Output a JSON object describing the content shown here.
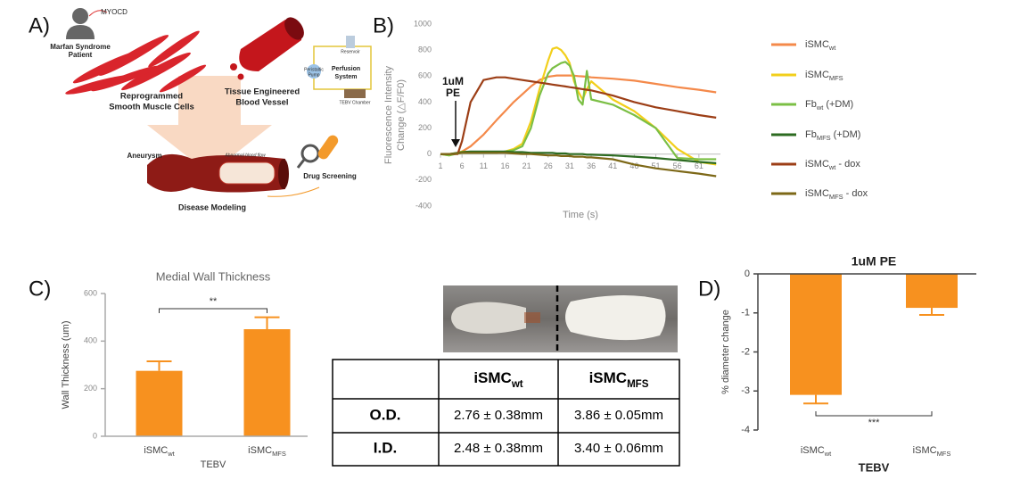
{
  "panels": [
    "A)",
    "B)",
    "C)",
    "D)"
  ],
  "diagram": {
    "gene": "MYOCD",
    "patient": [
      "Marfan Syndrome",
      "Patient"
    ],
    "cells": [
      "Reprogrammed",
      "Smooth Muscle Cells"
    ],
    "vessel": [
      "Tissue Engineered",
      "Blood Vessel"
    ],
    "perfusion": [
      "Perfusion",
      "System"
    ],
    "reservoir": "Reservoir",
    "pump": [
      "Peristaltic",
      "Pump"
    ],
    "chamber": "TEBV Chamber",
    "aneurysm": "Aneurysm",
    "flow": "Abnormal blood flow",
    "screening": "Drug Screening",
    "modeling": "Disease Modeling"
  },
  "table": {
    "header": [
      {
        "text": "iSMC",
        "sub": "wt"
      },
      {
        "text": "iSMC",
        "sub": "MFS"
      }
    ],
    "rows": [
      [
        "O.D.",
        "2.76 ± 0.38mm",
        "3.86 ± 0.05mm"
      ],
      [
        "I.D.",
        "2.48 ± 0.38mm",
        "3.40 ± 0.06mm"
      ]
    ]
  },
  "chart_data": [
    {
      "type": "line",
      "xlabel": "Time (s)",
      "ylabel": [
        "Fluorescence Intensity",
        "Change (△F/F0)"
      ],
      "annotation": [
        "1uM",
        "PE"
      ],
      "x": [
        1,
        3,
        5,
        6,
        8,
        11,
        14,
        16,
        18,
        20,
        22,
        24,
        26,
        27,
        28,
        29,
        30,
        31,
        32,
        33,
        34,
        35,
        36,
        41,
        46,
        51,
        56,
        61,
        65
      ],
      "xlim": [
        1,
        66
      ],
      "xticks": [
        1,
        6,
        11,
        16,
        21,
        26,
        31,
        36,
        41,
        46,
        51,
        56,
        61
      ],
      "ylim": [
        -400,
        1000
      ],
      "yticks": [
        -400,
        -200,
        0,
        200,
        400,
        600,
        800,
        1000
      ],
      "legend": "right",
      "series": [
        {
          "name": "iSMC",
          "name_sub": "wt",
          "color": "#f4894a",
          "values": [
            0,
            0,
            10,
            20,
            60,
            150,
            260,
            330,
            400,
            460,
            520,
            570,
            595,
            600,
            605,
            605,
            605,
            605,
            603,
            600,
            598,
            595,
            590,
            580,
            565,
            540,
            515,
            495,
            475
          ]
        },
        {
          "name": "iSMC",
          "name_sub": "MFS",
          "color": "#f2cf1b",
          "values": [
            0,
            -10,
            10,
            20,
            15,
            15,
            10,
            20,
            40,
            80,
            250,
            500,
            720,
            810,
            820,
            800,
            760,
            700,
            560,
            480,
            420,
            500,
            560,
            420,
            330,
            200,
            40,
            -60,
            -80
          ]
        },
        {
          "name": "Fb",
          "name_sub": "wt",
          "name_suffix": "(+DM)",
          "color": "#7bbf45",
          "values": [
            0,
            -10,
            5,
            10,
            10,
            10,
            10,
            20,
            30,
            60,
            200,
            450,
            620,
            660,
            680,
            700,
            710,
            680,
            600,
            420,
            380,
            640,
            420,
            380,
            300,
            200,
            -30,
            -40,
            -40
          ]
        },
        {
          "name": "Fb",
          "name_sub": "MFS",
          "name_suffix": "(+DM)",
          "color": "#2c6b21",
          "values": [
            0,
            0,
            10,
            15,
            20,
            20,
            20,
            20,
            15,
            15,
            10,
            10,
            10,
            10,
            5,
            5,
            5,
            0,
            0,
            0,
            0,
            -5,
            -5,
            -10,
            -20,
            -30,
            -45,
            -60,
            -70
          ]
        },
        {
          "name": "iSMC",
          "name_sub": "wt",
          "name_suffix": "- dox",
          "color": "#9c3e16",
          "values": [
            0,
            0,
            0,
            100,
            400,
            570,
            590,
            590,
            580,
            570,
            560,
            550,
            540,
            535,
            530,
            525,
            520,
            515,
            510,
            505,
            500,
            495,
            490,
            450,
            400,
            360,
            330,
            300,
            280
          ]
        },
        {
          "name": "iSMC",
          "name_sub": "MFS",
          "name_suffix": "- dox",
          "color": "#7d6817",
          "values": [
            0,
            0,
            5,
            10,
            10,
            10,
            10,
            10,
            5,
            0,
            0,
            -5,
            -10,
            -10,
            -10,
            -15,
            -15,
            -15,
            -20,
            -20,
            -20,
            -25,
            -25,
            -40,
            -80,
            -110,
            -130,
            -150,
            -170
          ]
        }
      ]
    },
    {
      "type": "bar",
      "title": "Medial Wall Thickness",
      "categories": [
        "iSMC",
        "iSMC"
      ],
      "category_subs": [
        "wt",
        "MFS"
      ],
      "values": [
        275,
        450
      ],
      "errors": [
        40,
        50
      ],
      "color": "#f7911f",
      "ylim": [
        0,
        600
      ],
      "yticks": [
        0,
        200,
        400,
        600
      ],
      "ylabel": "Wall Thickness (um)",
      "xlabel": "TEBV",
      "significance": "**"
    },
    {
      "type": "bar",
      "title": "1uM PE",
      "categories": [
        "iSMC",
        "iSMC"
      ],
      "category_subs": [
        "wt",
        "MFS"
      ],
      "values": [
        -3.1,
        -0.87
      ],
      "errors": [
        0.22,
        0.18
      ],
      "color": "#f7911f",
      "ylim": [
        -4,
        0
      ],
      "yticks": [
        0,
        -1,
        -2,
        -3,
        -4
      ],
      "ylabel": "% diameter change",
      "xlabel": "TEBV",
      "significance": "***"
    }
  ]
}
